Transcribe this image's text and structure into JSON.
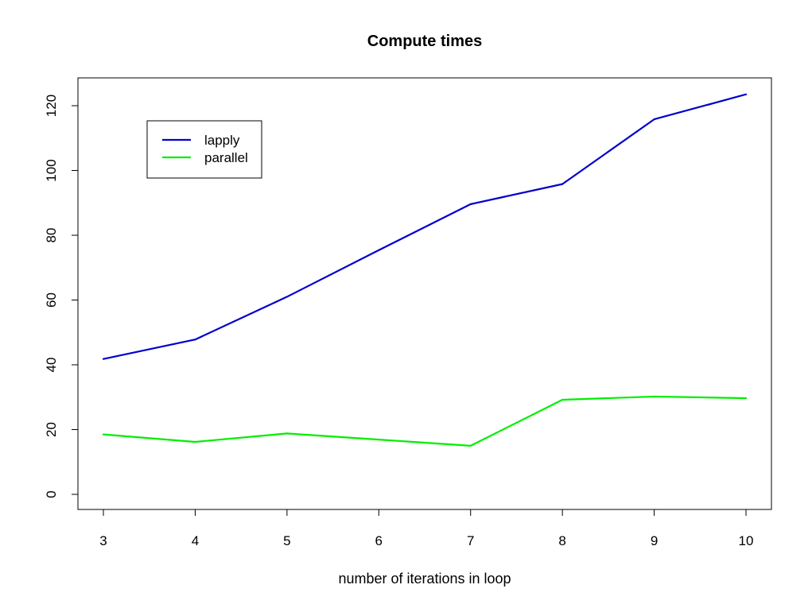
{
  "chart_data": {
    "type": "line",
    "title": "Compute times",
    "xlabel": "number of iterations in loop",
    "ylabel": "",
    "x": [
      3,
      4,
      5,
      6,
      7,
      8,
      9,
      10
    ],
    "xlim": [
      3,
      10
    ],
    "ylim": [
      0,
      120
    ],
    "xticks": [
      3,
      4,
      5,
      6,
      7,
      8,
      9,
      10
    ],
    "yticks": [
      0,
      20,
      40,
      60,
      80,
      100,
      120
    ],
    "grid": false,
    "legend_position": "top-left",
    "series": [
      {
        "name": "lapply",
        "color": "#0000cd",
        "values": [
          41.8,
          47.8,
          61.0,
          75.4,
          89.6,
          95.8,
          115.8,
          123.5
        ]
      },
      {
        "name": "parallel",
        "color": "#00ee00",
        "values": [
          18.5,
          16.2,
          18.8,
          16.9,
          15.0,
          29.2,
          30.2,
          29.7
        ]
      }
    ]
  }
}
